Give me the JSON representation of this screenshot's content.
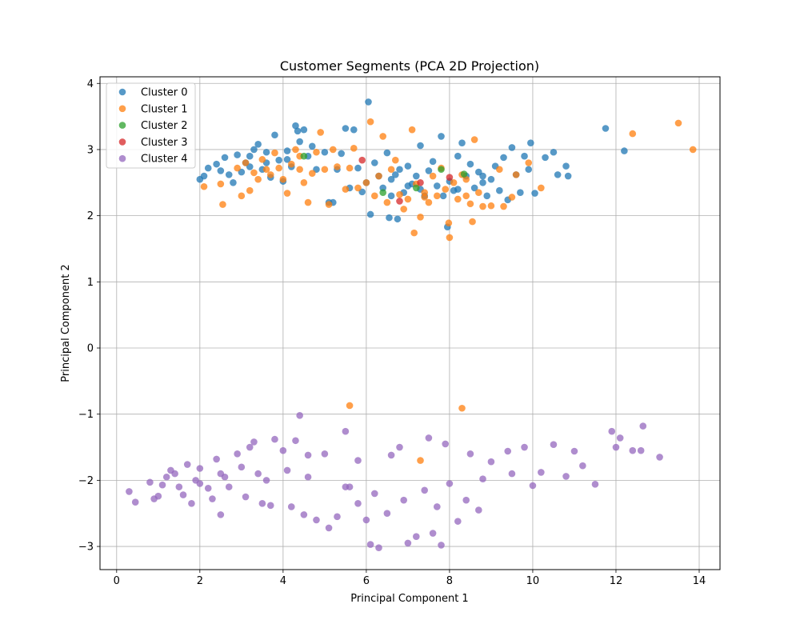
{
  "chart_data": {
    "type": "scatter",
    "title": "Customer Segments (PCA 2D Projection)",
    "xlabel": "Principal Component 1",
    "ylabel": "Principal Component 2",
    "xlim": [
      -0.4,
      14.5
    ],
    "ylim": [
      -3.35,
      4.1
    ],
    "xticks": [
      0,
      2,
      4,
      6,
      8,
      10,
      12,
      14
    ],
    "yticks": [
      -3,
      -2,
      -1,
      0,
      1,
      2,
      3,
      4
    ],
    "xtick_labels": [
      "0",
      "2",
      "4",
      "6",
      "8",
      "10",
      "12",
      "14"
    ],
    "ytick_labels": [
      "−3",
      "−2",
      "−1",
      "0",
      "1",
      "2",
      "3",
      "4"
    ],
    "grid": true,
    "legend_position": "top-left",
    "series": [
      {
        "name": "Cluster 0",
        "color": "#1f77b4",
        "points": [
          [
            2.0,
            2.55
          ],
          [
            2.1,
            2.6
          ],
          [
            2.2,
            2.72
          ],
          [
            2.4,
            2.78
          ],
          [
            2.5,
            2.68
          ],
          [
            2.6,
            2.88
          ],
          [
            2.7,
            2.62
          ],
          [
            2.8,
            2.5
          ],
          [
            2.9,
            2.92
          ],
          [
            3.0,
            2.66
          ],
          [
            3.1,
            2.8
          ],
          [
            3.2,
            2.74
          ],
          [
            3.3,
            3.0
          ],
          [
            3.4,
            3.08
          ],
          [
            3.5,
            2.7
          ],
          [
            3.6,
            2.96
          ],
          [
            3.7,
            2.58
          ],
          [
            3.8,
            3.22
          ],
          [
            3.9,
            2.84
          ],
          [
            4.0,
            2.52
          ],
          [
            4.1,
            2.98
          ],
          [
            4.2,
            2.74
          ],
          [
            4.3,
            3.36
          ],
          [
            4.35,
            3.28
          ],
          [
            4.4,
            3.12
          ],
          [
            4.5,
            3.3
          ],
          [
            4.6,
            2.9
          ],
          [
            4.7,
            3.05
          ],
          [
            4.8,
            2.7
          ],
          [
            5.0,
            2.96
          ],
          [
            5.1,
            2.2
          ],
          [
            5.2,
            2.2
          ],
          [
            5.3,
            2.7
          ],
          [
            5.4,
            2.94
          ],
          [
            5.5,
            3.32
          ],
          [
            5.6,
            2.42
          ],
          [
            5.7,
            3.3
          ],
          [
            5.8,
            2.72
          ],
          [
            5.9,
            2.36
          ],
          [
            6.0,
            2.5
          ],
          [
            6.05,
            3.72
          ],
          [
            6.1,
            2.02
          ],
          [
            6.2,
            2.8
          ],
          [
            6.3,
            2.6
          ],
          [
            6.4,
            2.42
          ],
          [
            6.5,
            2.95
          ],
          [
            6.55,
            1.97
          ],
          [
            6.6,
            2.55
          ],
          [
            6.7,
            2.62
          ],
          [
            6.75,
            1.95
          ],
          [
            6.8,
            2.7
          ],
          [
            6.9,
            2.35
          ],
          [
            7.0,
            2.75
          ],
          [
            7.1,
            2.48
          ],
          [
            7.2,
            2.6
          ],
          [
            7.3,
            3.06
          ],
          [
            7.4,
            2.3
          ],
          [
            7.5,
            2.68
          ],
          [
            7.6,
            2.82
          ],
          [
            7.7,
            2.45
          ],
          [
            7.8,
            3.2
          ],
          [
            7.85,
            2.3
          ],
          [
            7.95,
            1.83
          ],
          [
            8.0,
            2.52
          ],
          [
            8.1,
            2.38
          ],
          [
            8.2,
            2.9
          ],
          [
            8.3,
            3.1
          ],
          [
            8.4,
            2.6
          ],
          [
            8.5,
            2.78
          ],
          [
            8.6,
            2.42
          ],
          [
            8.7,
            2.66
          ],
          [
            8.8,
            2.5
          ],
          [
            8.9,
            2.3
          ],
          [
            9.0,
            2.55
          ],
          [
            9.1,
            2.75
          ],
          [
            9.2,
            2.38
          ],
          [
            9.3,
            2.88
          ],
          [
            9.4,
            2.24
          ],
          [
            9.5,
            3.03
          ],
          [
            9.6,
            2.62
          ],
          [
            9.7,
            2.35
          ],
          [
            9.8,
            2.9
          ],
          [
            9.9,
            2.7
          ],
          [
            9.95,
            3.1
          ],
          [
            10.05,
            2.34
          ],
          [
            10.3,
            2.88
          ],
          [
            10.5,
            2.96
          ],
          [
            10.6,
            2.62
          ],
          [
            10.8,
            2.75
          ],
          [
            10.85,
            2.6
          ],
          [
            11.75,
            3.32
          ],
          [
            12.2,
            2.98
          ],
          [
            7.0,
            2.45
          ],
          [
            7.3,
            2.4
          ],
          [
            8.2,
            2.4
          ],
          [
            8.8,
            2.6
          ],
          [
            3.2,
            2.9
          ],
          [
            3.6,
            2.8
          ],
          [
            4.1,
            2.85
          ],
          [
            6.6,
            2.3
          ]
        ]
      },
      {
        "name": "Cluster 1",
        "color": "#ff7f0e",
        "points": [
          [
            2.1,
            2.44
          ],
          [
            2.5,
            2.48
          ],
          [
            2.55,
            2.17
          ],
          [
            2.9,
            2.72
          ],
          [
            3.0,
            2.3
          ],
          [
            3.1,
            2.8
          ],
          [
            3.2,
            2.38
          ],
          [
            3.3,
            2.65
          ],
          [
            3.5,
            2.85
          ],
          [
            3.6,
            2.7
          ],
          [
            3.7,
            2.62
          ],
          [
            3.8,
            2.95
          ],
          [
            3.9,
            2.72
          ],
          [
            4.0,
            2.55
          ],
          [
            4.1,
            2.34
          ],
          [
            4.2,
            2.78
          ],
          [
            4.3,
            3.0
          ],
          [
            4.4,
            2.9
          ],
          [
            4.5,
            2.5
          ],
          [
            4.6,
            2.2
          ],
          [
            4.7,
            2.64
          ],
          [
            4.8,
            2.96
          ],
          [
            4.9,
            3.26
          ],
          [
            5.0,
            2.7
          ],
          [
            5.1,
            2.17
          ],
          [
            5.2,
            3.0
          ],
          [
            5.3,
            2.74
          ],
          [
            5.5,
            2.4
          ],
          [
            5.6,
            2.72
          ],
          [
            5.7,
            3.02
          ],
          [
            5.8,
            2.42
          ],
          [
            6.0,
            2.5
          ],
          [
            6.1,
            3.42
          ],
          [
            6.2,
            2.3
          ],
          [
            6.3,
            2.6
          ],
          [
            6.4,
            3.2
          ],
          [
            6.5,
            2.2
          ],
          [
            6.6,
            2.7
          ],
          [
            6.7,
            2.84
          ],
          [
            6.8,
            2.32
          ],
          [
            6.9,
            2.1
          ],
          [
            7.0,
            2.25
          ],
          [
            7.1,
            3.3
          ],
          [
            7.15,
            1.74
          ],
          [
            7.2,
            2.48
          ],
          [
            7.3,
            1.98
          ],
          [
            7.4,
            2.35
          ],
          [
            7.5,
            2.2
          ],
          [
            7.6,
            2.6
          ],
          [
            7.7,
            2.3
          ],
          [
            7.8,
            2.72
          ],
          [
            7.9,
            2.4
          ],
          [
            7.98,
            1.89
          ],
          [
            8.0,
            1.67
          ],
          [
            8.1,
            2.5
          ],
          [
            8.2,
            2.25
          ],
          [
            8.3,
            2.62
          ],
          [
            8.4,
            2.3
          ],
          [
            8.5,
            2.18
          ],
          [
            8.55,
            1.91
          ],
          [
            8.6,
            3.15
          ],
          [
            8.7,
            2.35
          ],
          [
            8.8,
            2.14
          ],
          [
            9.0,
            2.15
          ],
          [
            9.2,
            2.7
          ],
          [
            9.3,
            2.14
          ],
          [
            9.5,
            2.28
          ],
          [
            9.6,
            2.62
          ],
          [
            9.9,
            2.8
          ],
          [
            10.2,
            2.42
          ],
          [
            12.4,
            3.24
          ],
          [
            13.5,
            3.4
          ],
          [
            13.85,
            3.0
          ],
          [
            5.6,
            -0.87
          ],
          [
            8.3,
            -0.91
          ],
          [
            7.3,
            -1.7
          ],
          [
            4.4,
            2.7
          ],
          [
            3.4,
            2.55
          ],
          [
            7.4,
            2.28
          ],
          [
            8.4,
            2.55
          ]
        ]
      },
      {
        "name": "Cluster 2",
        "color": "#2ca02c",
        "points": [
          [
            4.5,
            2.9
          ],
          [
            6.4,
            2.35
          ],
          [
            7.2,
            2.42
          ],
          [
            7.8,
            2.7
          ],
          [
            8.35,
            2.63
          ]
        ]
      },
      {
        "name": "Cluster 3",
        "color": "#d62728",
        "points": [
          [
            5.9,
            2.84
          ],
          [
            6.8,
            2.22
          ],
          [
            7.3,
            2.5
          ],
          [
            8.0,
            2.58
          ]
        ]
      },
      {
        "name": "Cluster 4",
        "color": "#9467bd",
        "points": [
          [
            0.3,
            -2.17
          ],
          [
            0.45,
            -2.33
          ],
          [
            0.8,
            -2.03
          ],
          [
            0.9,
            -2.28
          ],
          [
            1.0,
            -2.24
          ],
          [
            1.1,
            -2.07
          ],
          [
            1.2,
            -1.95
          ],
          [
            1.3,
            -1.85
          ],
          [
            1.5,
            -2.1
          ],
          [
            1.6,
            -2.22
          ],
          [
            1.7,
            -1.76
          ],
          [
            1.8,
            -2.35
          ],
          [
            1.9,
            -2.0
          ],
          [
            2.0,
            -1.82
          ],
          [
            2.2,
            -2.12
          ],
          [
            2.3,
            -2.28
          ],
          [
            2.4,
            -1.68
          ],
          [
            2.5,
            -2.52
          ],
          [
            2.6,
            -1.95
          ],
          [
            2.7,
            -2.1
          ],
          [
            2.9,
            -1.6
          ],
          [
            3.1,
            -2.25
          ],
          [
            3.2,
            -1.5
          ],
          [
            3.3,
            -1.42
          ],
          [
            3.5,
            -2.35
          ],
          [
            3.7,
            -2.38
          ],
          [
            3.8,
            -1.38
          ],
          [
            4.0,
            -1.55
          ],
          [
            4.2,
            -2.4
          ],
          [
            4.3,
            -1.4
          ],
          [
            4.4,
            -1.02
          ],
          [
            4.5,
            -2.52
          ],
          [
            4.6,
            -1.62
          ],
          [
            4.8,
            -2.6
          ],
          [
            5.0,
            -1.6
          ],
          [
            5.1,
            -2.72
          ],
          [
            5.3,
            -2.55
          ],
          [
            5.5,
            -1.26
          ],
          [
            5.6,
            -2.1
          ],
          [
            5.8,
            -1.7
          ],
          [
            6.0,
            -2.6
          ],
          [
            6.1,
            -2.97
          ],
          [
            6.3,
            -3.02
          ],
          [
            6.6,
            -1.62
          ],
          [
            6.8,
            -1.5
          ],
          [
            7.0,
            -2.95
          ],
          [
            7.2,
            -2.85
          ],
          [
            7.5,
            -1.36
          ],
          [
            7.6,
            -2.8
          ],
          [
            7.8,
            -2.98
          ],
          [
            7.9,
            -1.45
          ],
          [
            8.2,
            -2.62
          ],
          [
            8.5,
            -1.6
          ],
          [
            8.7,
            -2.45
          ],
          [
            9.0,
            -1.72
          ],
          [
            9.4,
            -1.56
          ],
          [
            9.8,
            -1.5
          ],
          [
            10.0,
            -2.08
          ],
          [
            10.5,
            -1.46
          ],
          [
            10.8,
            -1.94
          ],
          [
            11.0,
            -1.56
          ],
          [
            11.2,
            -1.78
          ],
          [
            11.5,
            -2.06
          ],
          [
            11.9,
            -1.26
          ],
          [
            12.0,
            -1.5
          ],
          [
            12.1,
            -1.36
          ],
          [
            12.4,
            -1.55
          ],
          [
            12.6,
            -1.55
          ],
          [
            12.65,
            -1.18
          ],
          [
            13.05,
            -1.65
          ],
          [
            3.0,
            -1.8
          ],
          [
            3.4,
            -1.9
          ],
          [
            3.6,
            -2.0
          ],
          [
            4.1,
            -1.85
          ],
          [
            4.6,
            -1.95
          ],
          [
            5.5,
            -2.1
          ],
          [
            6.2,
            -2.2
          ],
          [
            6.9,
            -2.3
          ],
          [
            7.4,
            -2.15
          ],
          [
            8.0,
            -2.05
          ],
          [
            8.8,
            -1.98
          ],
          [
            9.5,
            -1.9
          ],
          [
            10.2,
            -1.88
          ],
          [
            2.5,
            -1.9
          ],
          [
            2.0,
            -2.05
          ],
          [
            1.4,
            -1.9
          ],
          [
            5.8,
            -2.35
          ],
          [
            6.5,
            -2.5
          ],
          [
            7.7,
            -2.4
          ],
          [
            8.4,
            -2.3
          ]
        ]
      }
    ]
  }
}
